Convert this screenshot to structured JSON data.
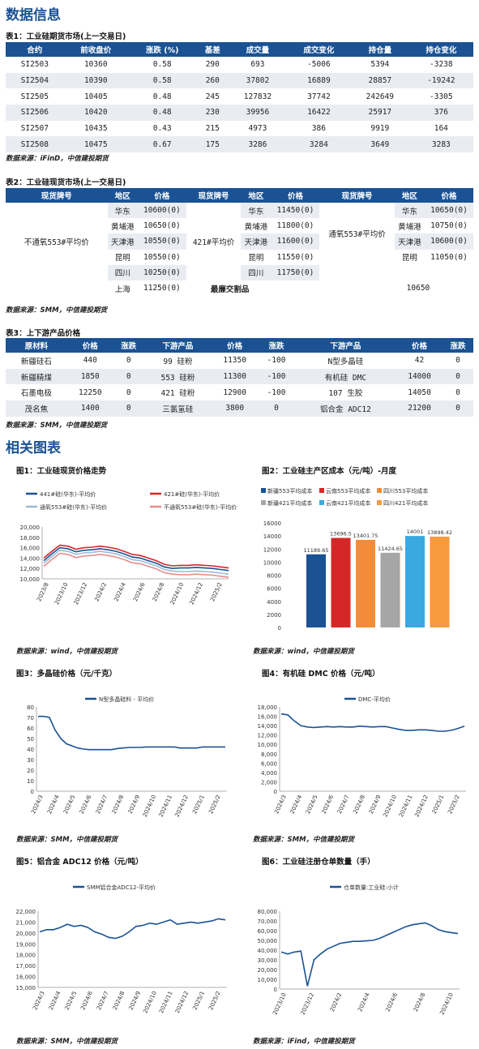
{
  "h1": "数据信息",
  "t1": {
    "caption": "表1：工业硅期货市场(上一交易日)",
    "headers": [
      "合约",
      "前收盘价",
      "涨跌 (%)",
      "基差",
      "成交量",
      "成交变化",
      "持仓量",
      "持仓变化"
    ],
    "rows": [
      [
        "SI2503",
        "10360",
        "0.58",
        "290",
        "693",
        "-5006",
        "5394",
        "-3238"
      ],
      [
        "SI2504",
        "10390",
        "0.58",
        "260",
        "37802",
        "16889",
        "28857",
        "-19242"
      ],
      [
        "SI2505",
        "10405",
        "0.48",
        "245",
        "127832",
        "37742",
        "242649",
        "-3305"
      ],
      [
        "SI2506",
        "10420",
        "0.48",
        "230",
        "39956",
        "16422",
        "25917",
        "376"
      ],
      [
        "SI2507",
        "10435",
        "0.43",
        "215",
        "4973",
        "386",
        "9919",
        "164"
      ],
      [
        "SI2508",
        "10475",
        "0.67",
        "175",
        "3286",
        "3284",
        "3649",
        "3283"
      ]
    ],
    "source": "数据来源：iFinD，中信建投期货"
  },
  "t2": {
    "caption": "表2：工业硅现货市场(上一交易日)",
    "headers": [
      "现货牌号",
      "地区",
      "价格",
      "现货牌号",
      "地区",
      "价格",
      "现货牌号",
      "地区",
      "价格"
    ],
    "g1": "不通氧553#平均价",
    "g2": "421#平均价",
    "g3": "通氧553#平均价",
    "c1": [
      [
        "华东",
        "10600(0)"
      ],
      [
        "黄埔港",
        "10650(0)"
      ],
      [
        "天津港",
        "10550(0)"
      ],
      [
        "昆明",
        "10550(0)"
      ],
      [
        "四川",
        "10250(0)"
      ],
      [
        "上海",
        "11250(0)"
      ]
    ],
    "c2": [
      [
        "华东",
        "11450(0)"
      ],
      [
        "黄埔港",
        "11800(0)"
      ],
      [
        "天津港",
        "11600(0)"
      ],
      [
        "昆明",
        "11550(0)"
      ],
      [
        "四川",
        "11750(0)"
      ]
    ],
    "c3": [
      [
        "华东",
        "10650(0)"
      ],
      [
        "黄埔港",
        "10750(0)"
      ],
      [
        "天津港",
        "10600(0)"
      ],
      [
        "昆明",
        "11050(0)"
      ]
    ],
    "deliver_label": "最廉交割品",
    "deliver_value": "10650",
    "source": "数据来源：SMM，中信建投期货"
  },
  "t3": {
    "caption": "表3：上下游产品价格",
    "headers": [
      "原材料",
      "价格",
      "涨跌",
      "下游产品",
      "价格",
      "涨跌",
      "下游产品",
      "价格",
      "涨跌"
    ],
    "rows": [
      [
        "新疆硅石",
        "440",
        "0",
        "99 硅粉",
        "11350",
        "-100",
        "N型多晶硅",
        "42",
        "0"
      ],
      [
        "新疆精煤",
        "1850",
        "0",
        "553 硅粉",
        "11300",
        "-100",
        "有机硅 DMC",
        "14000",
        "0"
      ],
      [
        "石墨电极",
        "12250",
        "0",
        "421 硅粉",
        "12900",
        "-100",
        "107 生胶",
        "14050",
        "0"
      ],
      [
        "茂名焦",
        "1400",
        "0",
        "三氯氢硅",
        "3800",
        "0",
        "铝合金 ADC12",
        "21200",
        "0"
      ]
    ],
    "source": "数据来源：SMM，中信建投期货"
  },
  "h2": "相关图表",
  "charts": {
    "c1": {
      "caption": "图1：工业硅现货价格走势",
      "source": "数据来源：wind，中信建投期货",
      "legend": [
        "441#硅(华东)-平均价",
        "421#硅(华东)-平均价",
        "通氧553#硅(华东)-平均价",
        "不通氧553#硅(华东)-平均价"
      ],
      "colors": [
        "#1a5294",
        "#d62728",
        "#9cb9d6",
        "#e88b8b"
      ],
      "yticks": [
        "20,000",
        "18,000",
        "16,000",
        "14,000",
        "12,000",
        "10,000"
      ],
      "xticks": [
        "2023/8",
        "2023/10",
        "2023/12",
        "2024/2",
        "2024/4",
        "2024/6",
        "2024/8",
        "2024/10",
        "2024/12",
        "2025/2"
      ]
    },
    "c2": {
      "caption": "图2：工业硅主产区成本（元/吨）-月度",
      "source": "数据来源：wind，中信建投期货",
      "legend": [
        "新疆553平均成本",
        "云南553平均成本",
        "四川553平均成本",
        "新疆421平均成本",
        "云南421平均成本",
        "四川421平均成本"
      ],
      "colors": [
        "#1a5294",
        "#d62728",
        "#f28c38",
        "#a6a6a6",
        "#3aa9e0",
        "#f59a3e"
      ],
      "yticks": [
        "16000",
        "14000",
        "12000",
        "10000",
        "8000",
        "6000",
        "4000",
        "2000",
        "0"
      ],
      "chart_data": {
        "type": "bar",
        "categories": [
          "新疆553",
          "云南553",
          "四川553",
          "新疆421",
          "云南421",
          "四川421"
        ],
        "values": [
          11189.65,
          13696.5,
          13401.75,
          11424.65,
          14001,
          13898.42
        ],
        "ylim": [
          0,
          16000
        ]
      }
    },
    "c3": {
      "caption": "图3：多晶硅价格（元/千克）",
      "source": "数据来源：SMM，中信建投期货",
      "legend": [
        "N型多晶硅料 - 平均价"
      ],
      "yticks": [
        "80",
        "70",
        "60",
        "50",
        "40",
        "30",
        "20",
        "10",
        "0"
      ],
      "xticks": [
        "2024/3",
        "2024/4",
        "2024/5",
        "2024/6",
        "2024/7",
        "2024/8",
        "2024/9",
        "2024/10",
        "2024/11",
        "2024/12",
        "2025/1",
        "2025/2"
      ]
    },
    "c4": {
      "caption": "图4：有机硅 DMC 价格（元/吨）",
      "source": "数据来源：SMM，中信建投期货",
      "legend": [
        "DMC-平均价"
      ],
      "yticks": [
        "18,000",
        "16,000",
        "14,000",
        "12,000",
        "10,000",
        "8,000",
        "6,000",
        "4,000",
        "2,000",
        "0"
      ],
      "xticks": [
        "2024/3",
        "2024/4",
        "2024/5",
        "2024/6",
        "2024/7",
        "2024/8",
        "2024/9",
        "2024/10",
        "2024/11",
        "2024/12",
        "2025/1",
        "2025/2"
      ]
    },
    "c5": {
      "caption": "图5：铝合金 ADC12 价格（元/吨）",
      "source": "数据来源：SMM，中信建投期货",
      "legend": [
        "SMM铝合金ADC12-平均价"
      ],
      "yticks": [
        "22,000",
        "21,000",
        "20,000",
        "19,000",
        "18,000",
        "17,000",
        "16,000",
        "15,000"
      ],
      "xticks": [
        "2024/3",
        "2024/4",
        "2024/5",
        "2024/6",
        "2024/7",
        "2024/8",
        "2024/9",
        "2024/10",
        "2024/11",
        "2024/12",
        "2025/1",
        "2025/2"
      ]
    },
    "c6": {
      "caption": "图6：工业硅注册仓单数量（手）",
      "source": "数据来源：iFind，中信建投期货",
      "legend": [
        "仓单数量:工业硅:小计"
      ],
      "yticks": [
        "80,000",
        "70,000",
        "60,000",
        "50,000",
        "40,000",
        "30,000",
        "20,000",
        "10,000",
        "0"
      ],
      "xticks": [
        "2023/10",
        "2023/12",
        "2024/2",
        "2024/4",
        "2024/6",
        "2024/8",
        "2024/10"
      ]
    }
  }
}
